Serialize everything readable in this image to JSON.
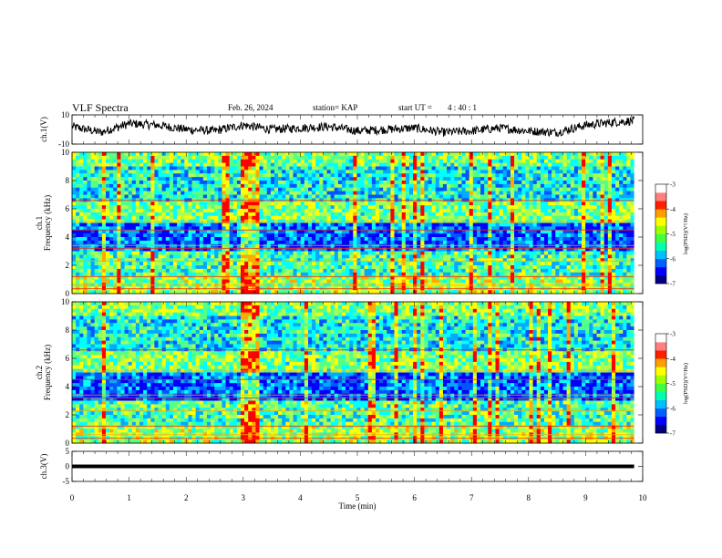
{
  "header": {
    "title": "VLF Spectra",
    "date": "Feb. 26, 2024",
    "station": "station= KAP",
    "start": "start UT =",
    "start_time": "4 : 40 : 1"
  },
  "colors": {
    "colormap": [
      "#ffffff",
      "#ff0000",
      "#ffa500",
      "#ffff00",
      "#00ff00",
      "#00ffff",
      "#0000ff",
      "#000066"
    ],
    "trace": "#000000"
  },
  "chart_data": [
    {
      "type": "line",
      "ylabel": "ch.1(V)",
      "ylim": [
        -10,
        10
      ],
      "yticks": [
        "10",
        "-10"
      ],
      "xlim": [
        0,
        10
      ],
      "series": [
        {
          "x": [
            0,
            0.5,
            1,
            1.5,
            2,
            2.5,
            3,
            3.5,
            4,
            4.5,
            5,
            5.5,
            6,
            6.5,
            7,
            7.5,
            8,
            8.5,
            9,
            9.5,
            9.85
          ],
          "values": [
            2,
            -2,
            4,
            3,
            0,
            -1,
            3,
            0,
            1,
            2,
            -1,
            0,
            1,
            -2,
            -1,
            1,
            -1,
            -2,
            3,
            5,
            6
          ]
        }
      ]
    },
    {
      "type": "heatmap",
      "ylabel": "ch.1\nFrequency (kHz)",
      "xlim": [
        0,
        10
      ],
      "ylim": [
        0,
        10
      ],
      "yticks": [
        "0",
        "2",
        "4",
        "6",
        "8",
        "10"
      ],
      "colorbar": {
        "label": "log(PSD)(V²/Hz)",
        "ticks": [
          "-3",
          "-4",
          "-5",
          "-6",
          "-7"
        ],
        "range": [
          -7,
          -3
        ]
      }
    },
    {
      "type": "heatmap",
      "ylabel": "ch.2\nFrequency (kHz)",
      "xlim": [
        0,
        10
      ],
      "ylim": [
        0,
        10
      ],
      "yticks": [
        "0",
        "2",
        "4",
        "6",
        "8",
        "10"
      ],
      "colorbar": {
        "label": "log(PSD)(V²/Hz)",
        "ticks": [
          "-3",
          "-4",
          "-5",
          "-6",
          "-7"
        ],
        "range": [
          -7,
          -3
        ]
      }
    },
    {
      "type": "line",
      "ylabel": "ch.3(V)",
      "ylim": [
        -5,
        5
      ],
      "yticks": [
        "5",
        "0",
        "-5"
      ],
      "xlim": [
        0,
        10
      ],
      "series": [
        {
          "x": [
            0,
            9.85
          ],
          "values": [
            0,
            0
          ]
        }
      ]
    }
  ],
  "xaxis": {
    "label": "Time (min)",
    "ticks": [
      "0",
      "1",
      "2",
      "3",
      "4",
      "5",
      "6",
      "7",
      "8",
      "9",
      "10"
    ]
  }
}
